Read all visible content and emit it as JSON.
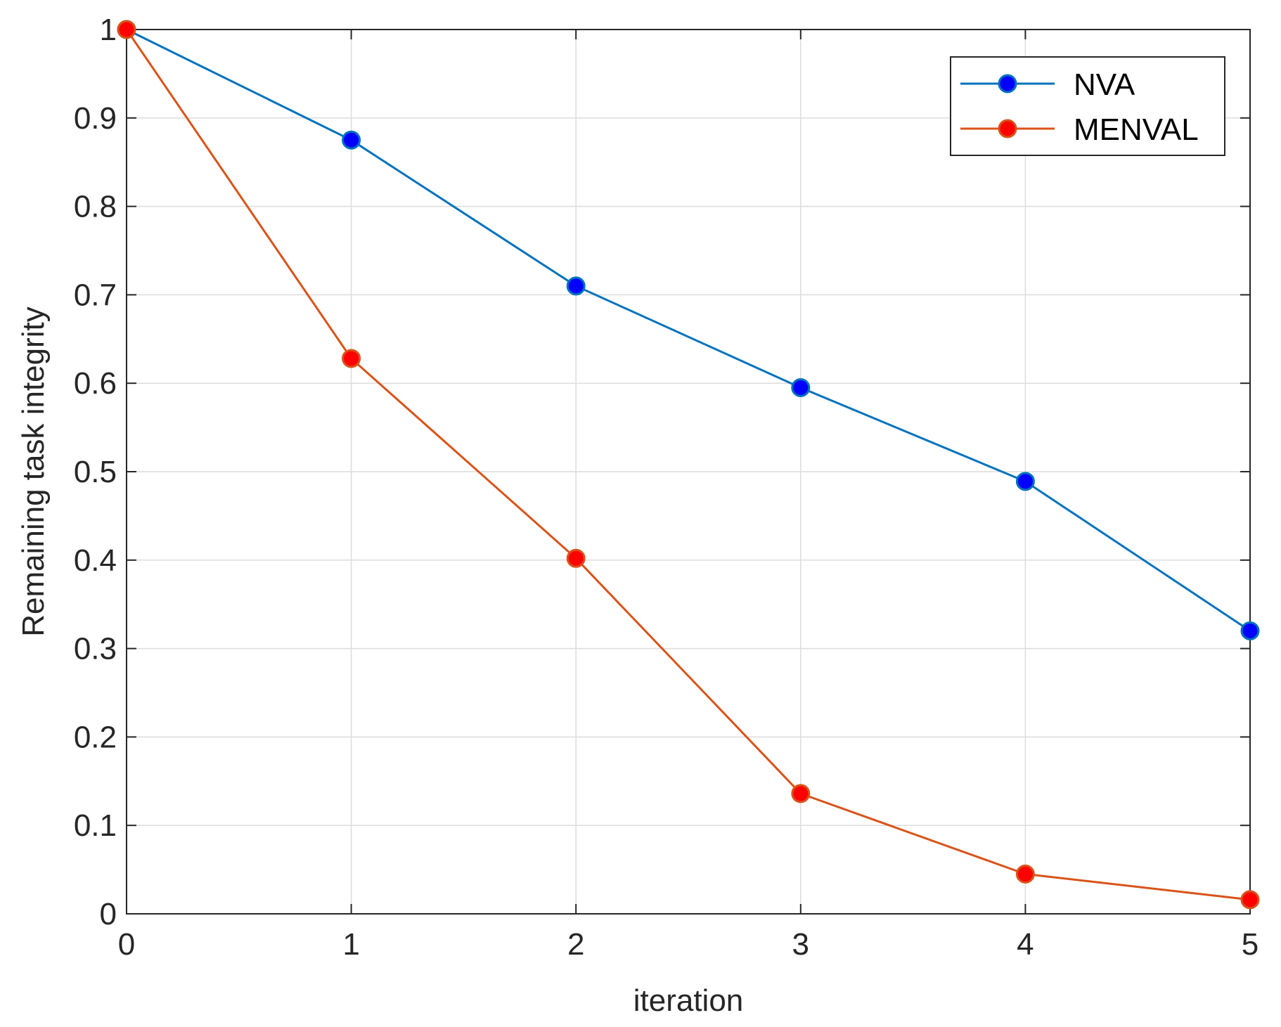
{
  "chart_data": {
    "type": "line",
    "title": "",
    "xlabel": "iteration",
    "ylabel": "Remaining task integrity",
    "xlim": [
      0,
      5
    ],
    "ylim": [
      0,
      1
    ],
    "xticks": [
      0,
      1,
      2,
      3,
      4,
      5
    ],
    "xtick_labels": [
      "0",
      "1",
      "2",
      "3",
      "4",
      "5"
    ],
    "yticks": [
      0,
      0.1,
      0.2,
      0.3,
      0.4,
      0.5,
      0.6,
      0.7,
      0.8,
      0.9,
      1
    ],
    "ytick_labels": [
      "0",
      "0.1",
      "0.2",
      "0.3",
      "0.4",
      "0.5",
      "0.6",
      "0.7",
      "0.8",
      "0.9",
      "1"
    ],
    "grid": true,
    "legend_position": "top-right",
    "x": [
      0,
      1,
      2,
      3,
      4,
      5
    ],
    "series": [
      {
        "name": "NVA",
        "values": [
          1.0,
          0.875,
          0.71,
          0.595,
          0.489,
          0.32
        ],
        "line_color": "#0072BD",
        "marker_color": "#0000FF"
      },
      {
        "name": "MENVAL",
        "values": [
          1.0,
          0.628,
          0.402,
          0.136,
          0.045,
          0.016
        ],
        "line_color": "#D95319",
        "marker_color": "#FF0000"
      }
    ]
  }
}
